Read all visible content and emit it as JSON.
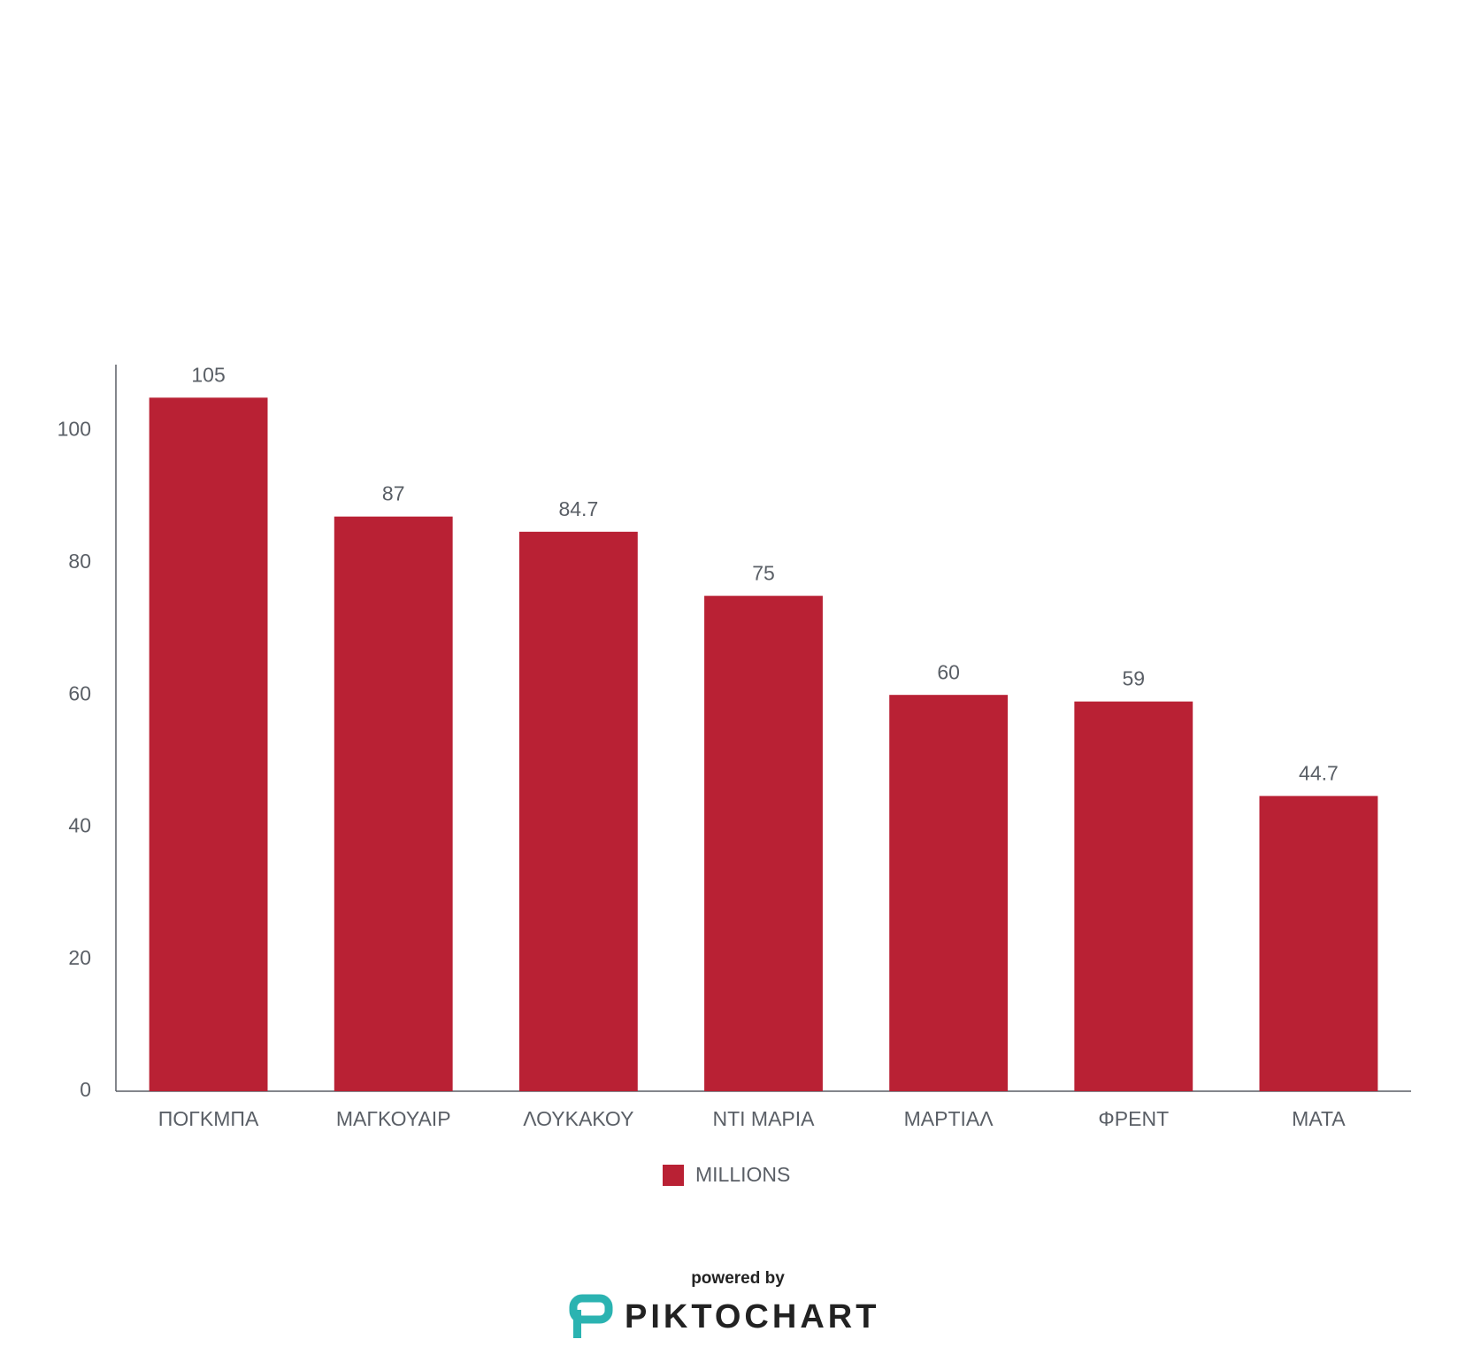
{
  "chart_data": {
    "type": "bar",
    "categories": [
      "ΠΟΓΚΜΠΑ",
      "ΜΑΓΚΟΥΑΙΡ",
      "ΛΟΥΚΑΚΟΥ",
      "ΝΤΙ ΜΑΡΙΑ",
      "ΜΑΡΤΙΑΛ",
      "ΦΡΕΝΤ",
      "ΜΑΤΑ"
    ],
    "series": [
      {
        "name": "MILLIONS",
        "color": "#b92134",
        "values": [
          105,
          87,
          84.7,
          75,
          60,
          59,
          44.7
        ]
      }
    ],
    "ylim": [
      0,
      110
    ],
    "yticks": [
      0,
      20,
      40,
      60,
      80,
      100
    ],
    "grid": false,
    "legend": "bottom",
    "footer": {
      "powered": "powered by",
      "brand": "PIKTOCHART"
    }
  }
}
